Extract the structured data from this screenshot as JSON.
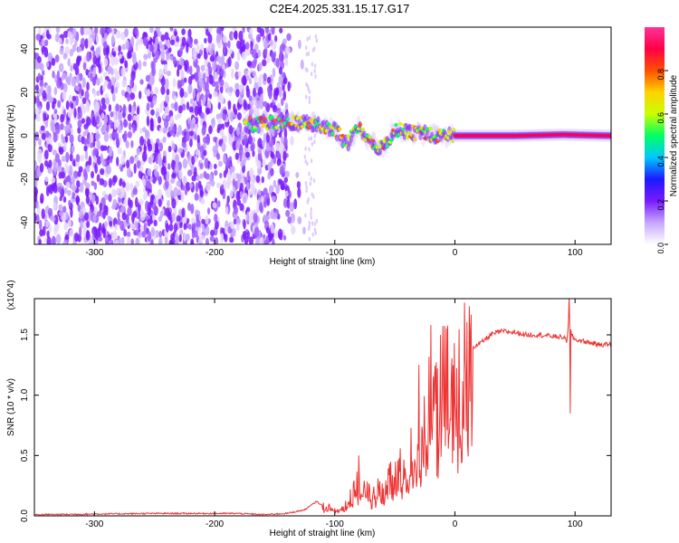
{
  "title": "C2E4.2025.331.15.17.G17",
  "chart_data": [
    {
      "type": "heatmap",
      "xlabel": "Height of straight line (km)",
      "ylabel": "Frequency (Hz)",
      "xlim": [
        -350,
        130
      ],
      "ylim": [
        -50,
        50
      ],
      "x_ticks": [
        -300,
        -200,
        -100,
        0,
        100
      ],
      "y_ticks": [
        -40,
        -20,
        0,
        20,
        40
      ],
      "colorbar": {
        "label": "Normalized spectral amplitude",
        "range": [
          0,
          1
        ],
        "ticks": [
          0.0,
          0.2,
          0.4,
          0.6,
          0.8
        ],
        "tick_labels": [
          "0.0",
          "0.2",
          "0.4",
          "0.6",
          "0.8"
        ],
        "colors": [
          "#ffffff",
          "#c6a6ff",
          "#7a1aff",
          "#1a1aff",
          "#00c8ff",
          "#00ff66",
          "#c8ff00",
          "#ffd200",
          "#ff5000",
          "#ff0044",
          "#ff3399"
        ]
      },
      "features": [
        {
          "name": "noise region",
          "x_range": [
            -350,
            -140
          ],
          "freq_range": [
            -50,
            50
          ],
          "amplitude": 0.05
        },
        {
          "name": "signal track",
          "points": [
            [
              -175,
              5
            ],
            [
              -150,
              6
            ],
            [
              -140,
              6
            ],
            [
              -120,
              6
            ],
            [
              -100,
              3
            ],
            [
              -90,
              -4
            ],
            [
              -80,
              4
            ],
            [
              -70,
              -3
            ],
            [
              -60,
              -6
            ],
            [
              -50,
              3
            ],
            [
              -40,
              2
            ],
            [
              -30,
              1
            ],
            [
              -20,
              0.5
            ],
            [
              -10,
              0
            ],
            [
              0,
              0
            ],
            [
              50,
              0
            ],
            [
              90,
              0.5
            ],
            [
              130,
              0
            ]
          ],
          "amplitude": 0.9
        }
      ]
    },
    {
      "type": "line",
      "xlabel": "Height of straight line (km)",
      "ylabel": "SNR (10 * v/v)",
      "y_multiplier": "(x10^4)",
      "xlim": [
        -350,
        130
      ],
      "ylim": [
        0,
        1.8
      ],
      "x_ticks": [
        -300,
        -200,
        -100,
        0,
        100
      ],
      "y_ticks": [
        0.0,
        0.5,
        1.0,
        1.5
      ],
      "y_tick_labels": [
        "0.0",
        "0.5",
        "1.0",
        "1.5"
      ],
      "series": [
        {
          "name": "SNR",
          "color": "#ee3333",
          "x": [
            -350,
            -250,
            -200,
            -180,
            -160,
            -140,
            -125,
            -115,
            -110,
            -100,
            -90,
            -80,
            -70,
            -60,
            -50,
            -40,
            -35,
            -30,
            -25,
            -20,
            -15,
            -10,
            -5,
            0,
            5,
            10,
            15,
            20,
            25,
            30,
            35,
            40,
            50,
            60,
            70,
            80,
            90,
            93,
            95,
            97,
            100,
            110,
            120,
            130
          ],
          "y": [
            0.01,
            0.02,
            0.02,
            0.02,
            0.01,
            0.02,
            0.05,
            0.12,
            0.08,
            0.06,
            0.1,
            0.28,
            0.18,
            0.25,
            0.35,
            0.45,
            0.55,
            0.75,
            0.7,
            1.0,
            0.9,
            1.1,
            1.2,
            1.1,
            1.2,
            1.3,
            1.4,
            1.42,
            1.46,
            1.5,
            1.52,
            1.53,
            1.52,
            1.5,
            1.5,
            1.49,
            1.48,
            1.45,
            1.65,
            1.5,
            1.46,
            1.44,
            1.42,
            1.42
          ],
          "spikes": [
            [
              -20,
              1.58
            ],
            [
              -12,
              1.5
            ],
            [
              -30,
              1.25
            ],
            [
              -80,
              0.5
            ],
            [
              95,
              1.82
            ],
            [
              96,
              0.85
            ]
          ]
        }
      ]
    }
  ]
}
